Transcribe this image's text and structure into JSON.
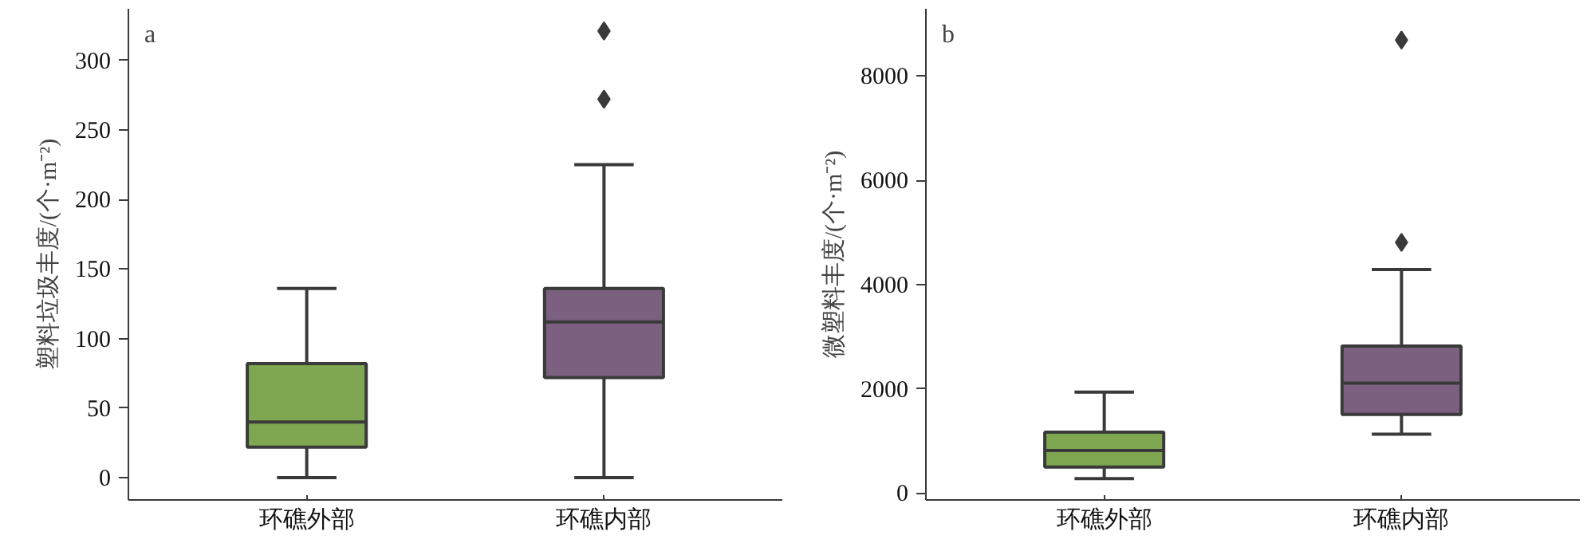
{
  "chart_data": [
    {
      "type": "box",
      "title": "a",
      "ylabel": "塑料垃圾丰度/(个·m⁻²)",
      "categories": [
        "环礁外部",
        "环礁内部"
      ],
      "colors": [
        "#7fa650",
        "#7b6080"
      ],
      "marker": "diamond",
      "grid": false,
      "ylim": [
        -16,
        337
      ],
      "yticks": [
        0,
        50,
        100,
        150,
        200,
        250,
        300
      ],
      "boxes": [
        {
          "low": 0,
          "q1": 22,
          "median": 40,
          "q3": 82,
          "high": 136
        },
        {
          "low": 0,
          "q1": 72,
          "median": 112,
          "q3": 136,
          "high": 225,
          "outliers": [
            272,
            321
          ]
        }
      ]
    },
    {
      "type": "box",
      "title": "b",
      "ylabel": "微塑料丰度/(个·m⁻²)",
      "categories": [
        "环礁外部",
        "环礁内部"
      ],
      "colors": [
        "#7fa650",
        "#7b6080"
      ],
      "marker": "diamond",
      "grid": false,
      "ylim": [
        -130,
        9290
      ],
      "yticks": [
        0,
        2000,
        4000,
        6000,
        8000
      ],
      "boxes": [
        {
          "low": 280,
          "q1": 500,
          "median": 820,
          "q3": 1170,
          "high": 1940
        },
        {
          "low": 1130,
          "q1": 1510,
          "median": 2110,
          "q3": 2820,
          "high": 4290,
          "outliers": [
            4810,
            8690
          ]
        }
      ]
    }
  ]
}
